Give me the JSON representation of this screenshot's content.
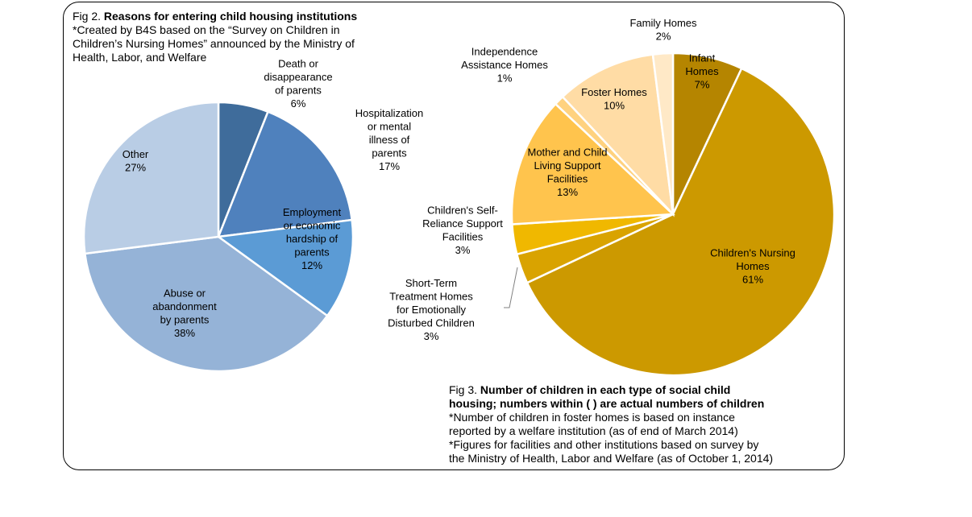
{
  "fig2": {
    "prefix": "Fig 2.",
    "title": "Reasons for entering child housing institutions",
    "notes": [
      "*Created by B4S based on the “Survey on Children in",
      "Children’s Nursing Homes” announced by the Ministry of",
      "Health, Labor, and Welfare"
    ]
  },
  "fig3": {
    "prefix": "Fig 3.",
    "title_lines": [
      "Number of children in each type of social child",
      "housing; numbers within ( ) are actual numbers of children"
    ],
    "notes": [
      "*Number of children in foster homes is based on instance",
      "reported by a welfare institution (as of end of March 2014)",
      "*Figures for facilities and other institutions based on survey by",
      "the Ministry of Health, Labor and Welfare (as of October 1, 2014)"
    ]
  },
  "chart_data": [
    {
      "type": "pie",
      "title": "Reasons for entering child housing institutions",
      "slices": [
        {
          "label": "Death or disappearance of parents",
          "label_lines": [
            "Death or",
            "disappearance",
            "of parents",
            "6%"
          ],
          "value": 6,
          "color": "#3F6C9B"
        },
        {
          "label": "Hospitalization or mental illness of parents",
          "label_lines": [
            "Hospitalization",
            "or mental",
            "illness of",
            "parents",
            "17%"
          ],
          "value": 17,
          "color": "#4F81BD"
        },
        {
          "label": "Employment or economic hardship of parents",
          "label_lines": [
            "Employment",
            "or economic",
            "hardship of",
            "parents",
            "12%"
          ],
          "value": 12,
          "color": "#5B9BD5"
        },
        {
          "label": "Abuse or abandonment by parents",
          "label_lines": [
            "Abuse or",
            "abandonment",
            "by parents",
            "38%"
          ],
          "value": 38,
          "color": "#95B3D7"
        },
        {
          "label": "Other",
          "label_lines": [
            "Other",
            "27%"
          ],
          "value": 27,
          "color": "#B9CDE5"
        }
      ]
    },
    {
      "type": "pie",
      "title": "Number of children in each type of social child housing",
      "slices": [
        {
          "label": "Infant Homes",
          "label_lines": [
            "Infant",
            "Homes",
            "7%"
          ],
          "value": 7,
          "color": "#B58500"
        },
        {
          "label": "Children's Nursing Homes",
          "label_lines": [
            "Children's Nursing",
            "Homes",
            "61%"
          ],
          "value": 61,
          "color": "#CC9900"
        },
        {
          "label": "Short-Term Treatment Homes for Emotionally Disturbed Children",
          "label_lines": [
            "Short-Term",
            "Treatment Homes",
            "for Emotionally",
            "Disturbed Children",
            "3%"
          ],
          "value": 3,
          "color": "#D9A300"
        },
        {
          "label": "Children's Self-Reliance Support Facilities",
          "label_lines": [
            "Children's Self-",
            "Reliance Support",
            "Facilities",
            "3%"
          ],
          "value": 3,
          "color": "#F0B800"
        },
        {
          "label": "Mother and Child Living Support Facilities",
          "label_lines": [
            "Mother and Child",
            "Living Support",
            "Facilities",
            "13%"
          ],
          "value": 13,
          "color": "#FFC44D"
        },
        {
          "label": "Independence Assistance Homes",
          "label_lines": [
            "Independence",
            "Assistance Homes",
            "1%"
          ],
          "value": 1,
          "color": "#FFD27F"
        },
        {
          "label": "Foster Homes",
          "label_lines": [
            "Foster Homes",
            "10%"
          ],
          "value": 10,
          "color": "#FFDCA5"
        },
        {
          "label": "Family Homes",
          "label_lines": [
            "Family Homes",
            "2%"
          ],
          "value": 2,
          "color": "#FFE9C7"
        }
      ]
    }
  ]
}
